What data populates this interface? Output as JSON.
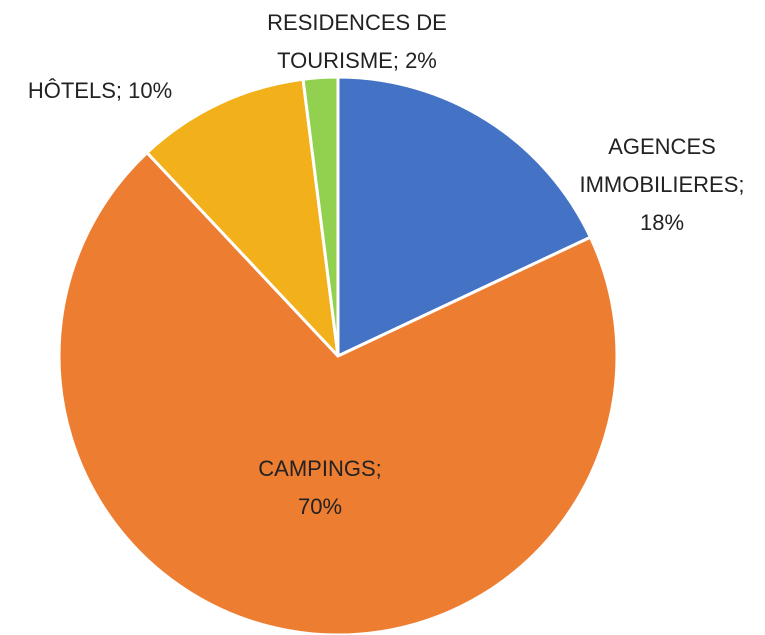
{
  "chart_data": {
    "type": "pie",
    "values": [
      18,
      70,
      10,
      2
    ],
    "value_labels": [
      "AGENCES IMMOBILIERES; 18%",
      "CAMPINGS; 70%",
      "HÔTELS; 10%",
      "RESIDENCES DE TOURISME; 2%"
    ],
    "colors": [
      "#4472c4",
      "#ed7d31",
      "#f2b11a",
      "#92d050"
    ]
  }
}
